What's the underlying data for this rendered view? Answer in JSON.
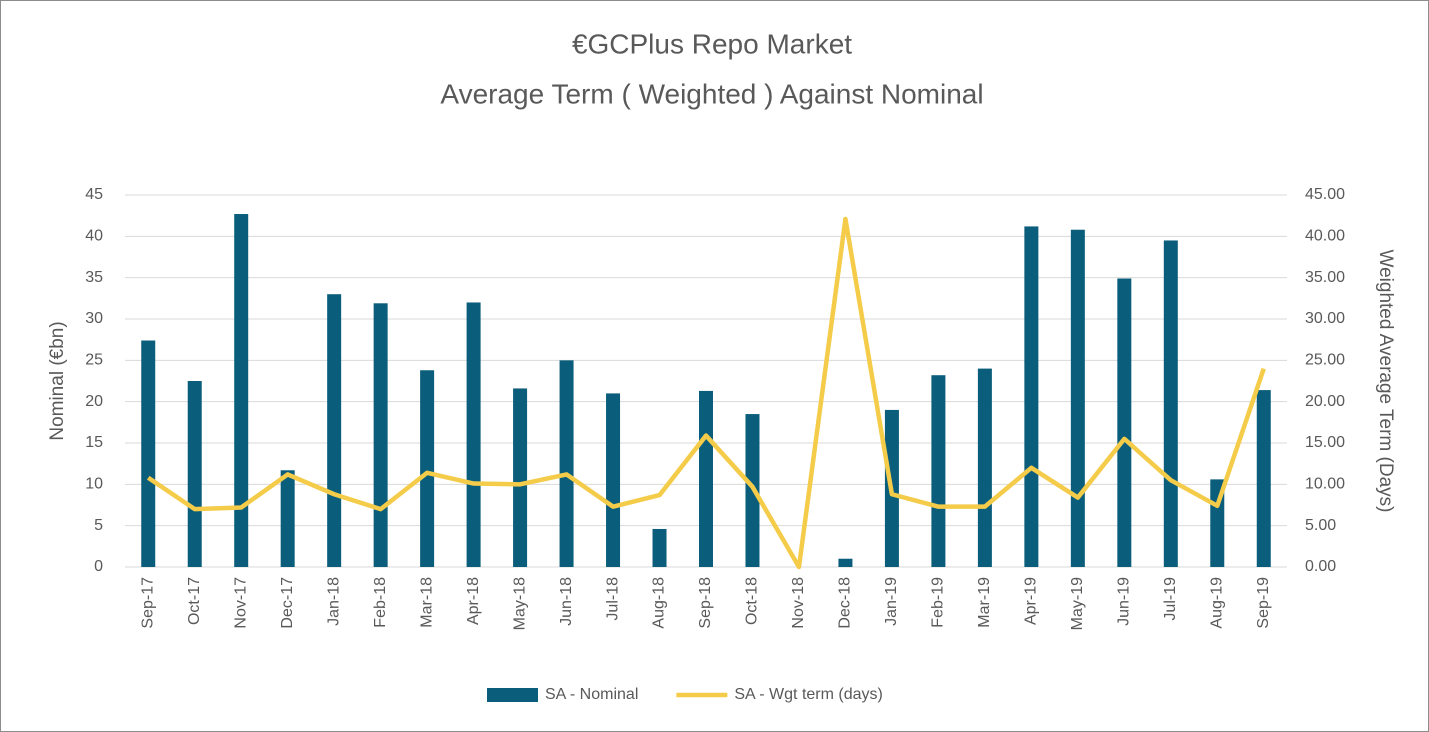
{
  "chart_data": {
    "type": "bar-line",
    "title": "€GCPlus Repo Market",
    "subtitle": "Average Term ( Weighted ) Against Nominal",
    "ylabel": "Nominal (€bn)",
    "y2label": "Weighted Average Term (Days)",
    "categories": [
      "Sep-17",
      "Oct-17",
      "Nov-17",
      "Dec-17",
      "Jan-18",
      "Feb-18",
      "Mar-18",
      "Apr-18",
      "May-18",
      "Jun-18",
      "Jul-18",
      "Aug-18",
      "Sep-18",
      "Oct-18",
      "Nov-18",
      "Dec-18",
      "Jan-19",
      "Feb-19",
      "Mar-19",
      "Apr-19",
      "May-19",
      "Jun-19",
      "Jul-19",
      "Aug-19",
      "Sep-19"
    ],
    "series": [
      {
        "name": "SA - Nominal",
        "type": "bar",
        "color": "#0b5e7b",
        "values": [
          27.4,
          22.5,
          42.7,
          11.7,
          33,
          31.9,
          23.8,
          32,
          21.6,
          25,
          21,
          4.6,
          21.3,
          18.5,
          0,
          1,
          19,
          23.2,
          24,
          41.2,
          40.8,
          34.9,
          39.5,
          10.6,
          21.4
        ]
      },
      {
        "name": "SA - Wgt term (days)",
        "type": "line",
        "axis": "y2",
        "color": "#f4cc4a",
        "values": [
          10.8,
          7.0,
          7.2,
          11.2,
          8.8,
          7.0,
          11.4,
          10.1,
          10.0,
          11.2,
          7.3,
          8.7,
          15.9,
          9.7,
          0,
          42.1,
          8.8,
          7.3,
          7.3,
          12.0,
          8.4,
          15.5,
          10.5,
          7.4,
          24.0
        ]
      }
    ],
    "ylim": [
      0,
      45
    ],
    "yticks": [
      0,
      5,
      10,
      15,
      20,
      25,
      30,
      35,
      40,
      45
    ],
    "y2lim": [
      0,
      45
    ],
    "y2ticks": [
      {
        "value": 0,
        "label": "0.00"
      },
      {
        "value": 5,
        "label": "5.00"
      },
      {
        "value": 10,
        "label": "10.00"
      },
      {
        "value": 15,
        "label": "15.00"
      },
      {
        "value": 20,
        "label": "20.00"
      },
      {
        "value": 25,
        "label": "25.00"
      },
      {
        "value": 30,
        "label": "30.00"
      },
      {
        "value": 35,
        "label": "35.00"
      },
      {
        "value": 40,
        "label": "40.00"
      },
      {
        "value": 45,
        "label": "45.00"
      }
    ],
    "grid": true,
    "legend": "bottom"
  }
}
